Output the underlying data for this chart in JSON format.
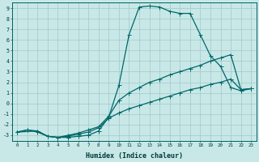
{
  "xlabel": "Humidex (Indice chaleur)",
  "bg_color": "#c8e8e8",
  "grid_color": "#a8cccc",
  "line_color": "#006868",
  "xlim": [
    -0.5,
    23.5
  ],
  "ylim": [
    -3.5,
    9.5
  ],
  "xticks": [
    0,
    1,
    2,
    3,
    4,
    5,
    6,
    7,
    8,
    9,
    10,
    11,
    12,
    13,
    14,
    15,
    16,
    17,
    18,
    19,
    20,
    21,
    22,
    23
  ],
  "yticks": [
    -3,
    -2,
    -1,
    0,
    1,
    2,
    3,
    4,
    5,
    6,
    7,
    8,
    9
  ],
  "line1_x": [
    0,
    1,
    2,
    3,
    4,
    5,
    6,
    7,
    8,
    9,
    10,
    11,
    12,
    13,
    14,
    15,
    16,
    17,
    18,
    19,
    20,
    21,
    22,
    23
  ],
  "line1_y": [
    -2.7,
    -2.5,
    -2.7,
    -3.1,
    -3.2,
    -3.2,
    -3.1,
    -3.0,
    -2.6,
    -1.3,
    1.7,
    6.5,
    9.1,
    9.2,
    9.1,
    8.7,
    8.5,
    8.5,
    6.5,
    4.5,
    3.5,
    1.5,
    1.2,
    1.4
  ],
  "line2_x": [
    0,
    2,
    3,
    4,
    5,
    6,
    7,
    8,
    9,
    10,
    11,
    12,
    13,
    14,
    15,
    16,
    17,
    18,
    19,
    20,
    21,
    22,
    23
  ],
  "line2_y": [
    -2.7,
    -2.6,
    -3.1,
    -3.2,
    -3.0,
    -2.8,
    -2.5,
    -2.2,
    -1.2,
    0.3,
    1.0,
    1.5,
    2.0,
    2.3,
    2.7,
    3.0,
    3.3,
    3.6,
    4.0,
    4.3,
    4.6,
    1.3,
    1.4
  ],
  "line3_x": [
    0,
    1,
    2,
    3,
    4,
    5,
    6,
    7,
    8,
    9,
    10,
    11,
    12,
    13,
    14,
    15,
    16,
    17,
    18,
    19,
    20,
    21,
    22,
    23
  ],
  "line3_y": [
    -2.7,
    -2.5,
    -2.6,
    -3.1,
    -3.2,
    -3.1,
    -2.9,
    -2.7,
    -2.3,
    -1.4,
    -0.9,
    -0.5,
    -0.2,
    0.1,
    0.4,
    0.7,
    1.0,
    1.3,
    1.5,
    1.8,
    2.0,
    2.3,
    1.3,
    1.4
  ]
}
